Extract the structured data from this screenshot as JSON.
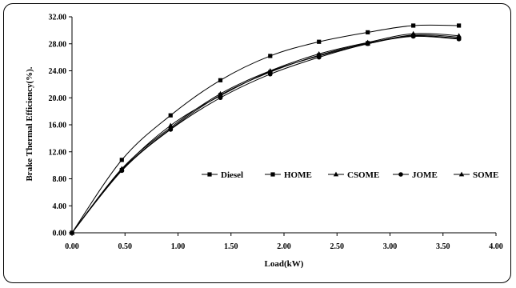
{
  "chart_data": {
    "type": "line",
    "title": "",
    "xlabel": "Load(kW)",
    "ylabel": "Brake Thermal Efficiency(%).",
    "xlim": [
      0,
      4
    ],
    "ylim": [
      0,
      32
    ],
    "x_ticks": [
      "0.00",
      "0.50",
      "1.00",
      "1.50",
      "2.00",
      "2.50",
      "3.00",
      "3.50",
      "4.00"
    ],
    "y_ticks": [
      "0.00",
      "4.00",
      "8.00",
      "12.00",
      "16.00",
      "20.00",
      "24.00",
      "28.00",
      "32.00"
    ],
    "grid": false,
    "legend_position": "center-right",
    "series": [
      {
        "name": "Diesel",
        "marker": "square",
        "x": [
          0,
          0.47,
          0.93,
          1.4,
          1.87,
          2.33,
          2.79,
          3.22,
          3.65
        ],
        "y": [
          0,
          10.8,
          17.4,
          22.6,
          26.2,
          28.3,
          29.7,
          30.7,
          30.7
        ]
      },
      {
        "name": "HOME",
        "marker": "square",
        "x": [
          0,
          0.47,
          0.93,
          1.4,
          1.87,
          2.33,
          2.79,
          3.22,
          3.65
        ],
        "y": [
          0,
          9.3,
          15.4,
          20.4,
          23.8,
          26.3,
          28.1,
          29.2,
          28.8
        ]
      },
      {
        "name": "CSOME",
        "marker": "triangle",
        "x": [
          0,
          0.47,
          0.93,
          1.4,
          1.87,
          2.33,
          2.79,
          3.22,
          3.65
        ],
        "y": [
          0,
          9.5,
          15.6,
          20.6,
          24.0,
          26.5,
          28.2,
          29.5,
          29.2
        ]
      },
      {
        "name": "JOME",
        "marker": "circle",
        "x": [
          0,
          0.47,
          0.93,
          1.4,
          1.87,
          2.33,
          2.79,
          3.22,
          3.65
        ],
        "y": [
          0,
          9.2,
          15.3,
          20.0,
          23.5,
          26.0,
          28.0,
          29.1,
          28.7
        ]
      },
      {
        "name": "SOME",
        "marker": "triangle",
        "x": [
          0,
          0.47,
          0.93,
          1.4,
          1.87,
          2.33,
          2.79,
          3.22,
          3.65
        ],
        "y": [
          0,
          9.4,
          15.9,
          20.3,
          23.9,
          26.2,
          28.0,
          29.3,
          29.0
        ]
      }
    ]
  }
}
